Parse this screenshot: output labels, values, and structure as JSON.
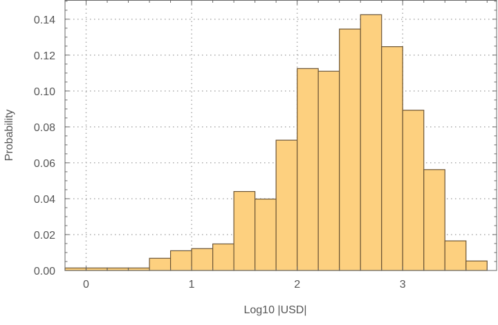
{
  "chart_data": {
    "type": "bar",
    "title": "",
    "xlabel": "Log10 |USD|",
    "ylabel": "Probability",
    "bin_edges": [
      -0.2,
      0.0,
      0.2,
      0.4,
      0.6,
      0.8,
      1.0,
      1.2,
      1.4,
      1.6,
      1.8,
      2.0,
      2.2,
      2.4,
      2.6,
      2.8,
      3.0,
      3.2,
      3.4,
      3.6,
      3.8
    ],
    "values": [
      0.0014,
      0.0014,
      0.0014,
      0.0014,
      0.0068,
      0.011,
      0.0122,
      0.0148,
      0.044,
      0.0398,
      0.0726,
      0.1125,
      0.111,
      0.1345,
      0.1425,
      0.1247,
      0.0893,
      0.0562,
      0.0165,
      0.0053
    ],
    "xlim": [
      -0.2,
      3.89
    ],
    "ylim": [
      0,
      0.1505
    ],
    "xticks": [
      0,
      1,
      2,
      3
    ],
    "xtick_labels": [
      "0",
      "1",
      "2",
      "3"
    ],
    "yticks": [
      0,
      0.02,
      0.04,
      0.06,
      0.08,
      0.1,
      0.12,
      0.14
    ],
    "ytick_labels": [
      "0.00",
      "0.02",
      "0.04",
      "0.06",
      "0.08",
      "0.10",
      "0.12",
      "0.14"
    ],
    "grid": true,
    "bar_fill": "#fdd07f",
    "bar_edge": "#6b5434"
  }
}
